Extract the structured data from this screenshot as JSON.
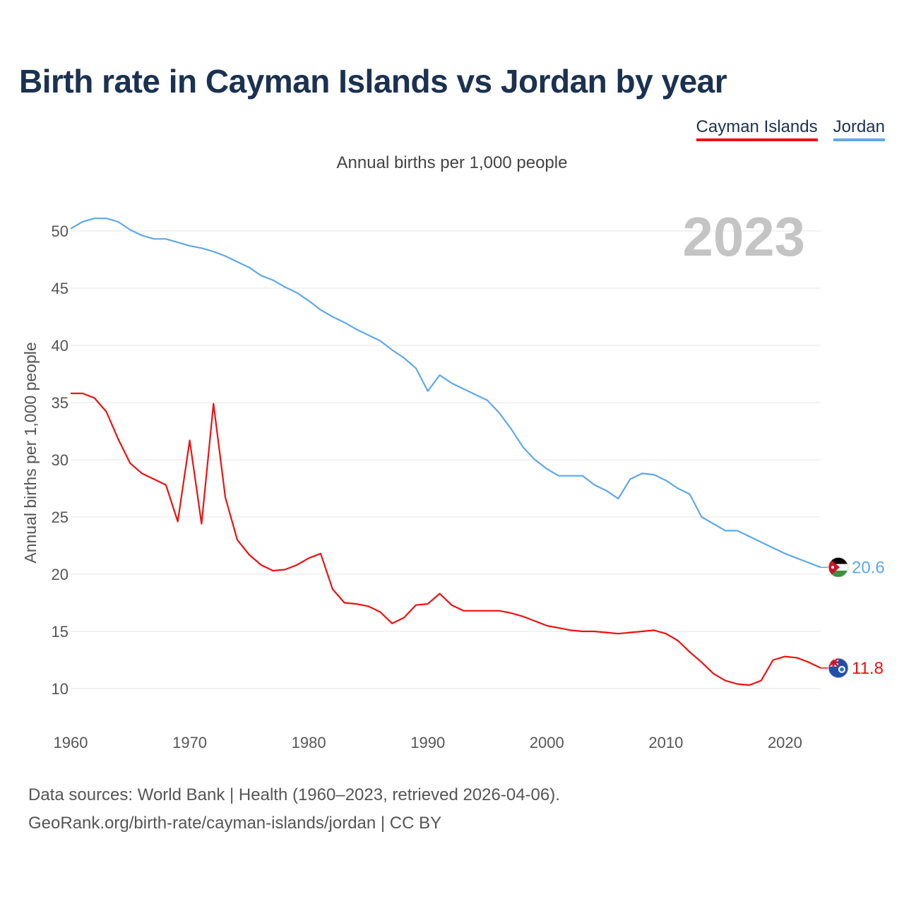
{
  "title": "Birth rate in Cayman Islands vs Jordan by year",
  "subtitle": "Annual births per 1,000 people",
  "legend": [
    {
      "name": "Cayman Islands",
      "color": "#ee1111"
    },
    {
      "name": "Jordan",
      "color": "#5fa8e8"
    }
  ],
  "source": {
    "line1": "Data sources: World Bank | Health (1960–2023, retrieved 2026-04-06).",
    "line2": "GeoRank.org/birth-rate/cayman-islands/jordan | CC BY"
  },
  "chart_data": {
    "type": "line",
    "title": "Birth rate in Cayman Islands vs Jordan by year",
    "subtitle": "Annual births per 1,000 people",
    "xlabel": "",
    "ylabel": "Annual births per 1,000 people",
    "xlim": [
      1960,
      2023
    ],
    "ylim": [
      7,
      53
    ],
    "grid": true,
    "year_label": "2023",
    "x_ticks": [
      1960,
      1970,
      1980,
      1990,
      2000,
      2010,
      2020
    ],
    "y_ticks": [
      10,
      15,
      20,
      25,
      30,
      35,
      40,
      45,
      50
    ],
    "x": [
      1960,
      1961,
      1962,
      1963,
      1964,
      1965,
      1966,
      1967,
      1968,
      1969,
      1970,
      1971,
      1972,
      1973,
      1974,
      1975,
      1976,
      1977,
      1978,
      1979,
      1980,
      1981,
      1982,
      1983,
      1984,
      1985,
      1986,
      1987,
      1988,
      1989,
      1990,
      1991,
      1992,
      1993,
      1994,
      1995,
      1996,
      1997,
      1998,
      1999,
      2000,
      2001,
      2002,
      2003,
      2004,
      2005,
      2006,
      2007,
      2008,
      2009,
      2010,
      2011,
      2012,
      2013,
      2014,
      2015,
      2016,
      2017,
      2018,
      2019,
      2020,
      2021,
      2022,
      2023
    ],
    "series": [
      {
        "name": "Cayman Islands",
        "color": "#ee1111",
        "end_label": "11.8",
        "values": [
          35.8,
          35.8,
          35.4,
          34.2,
          31.8,
          29.7,
          28.8,
          28.3,
          27.8,
          24.6,
          31.7,
          24.4,
          34.9,
          26.7,
          23.0,
          21.7,
          20.8,
          20.3,
          20.4,
          20.8,
          21.4,
          21.8,
          18.7,
          17.5,
          17.4,
          17.2,
          16.7,
          15.7,
          16.2,
          17.3,
          17.4,
          18.3,
          17.3,
          16.8,
          16.8,
          16.8,
          16.8,
          16.6,
          16.3,
          15.9,
          15.5,
          15.3,
          15.1,
          15.0,
          15.0,
          14.9,
          14.8,
          14.9,
          15.0,
          15.1,
          14.8,
          14.2,
          13.2,
          12.3,
          11.3,
          10.7,
          10.4,
          10.3,
          10.7,
          12.5,
          12.8,
          12.7,
          12.3,
          11.8
        ]
      },
      {
        "name": "Jordan",
        "color": "#5fa8e8",
        "end_label": "20.6",
        "values": [
          50.2,
          50.8,
          51.1,
          51.1,
          50.8,
          50.1,
          49.6,
          49.3,
          49.3,
          49.0,
          48.7,
          48.5,
          48.2,
          47.8,
          47.3,
          46.8,
          46.1,
          45.7,
          45.1,
          44.6,
          43.9,
          43.1,
          42.5,
          42.0,
          41.4,
          40.9,
          40.4,
          39.6,
          38.9,
          38.0,
          36.0,
          37.4,
          36.7,
          36.2,
          35.7,
          35.2,
          34.1,
          32.7,
          31.1,
          30.0,
          29.2,
          28.6,
          28.6,
          28.6,
          27.8,
          27.3,
          26.6,
          28.3,
          28.8,
          28.7,
          28.2,
          27.5,
          27.0,
          25.0,
          24.4,
          23.8,
          23.8,
          23.3,
          22.8,
          22.3,
          21.8,
          21.4,
          21.0,
          20.6
        ]
      }
    ]
  }
}
